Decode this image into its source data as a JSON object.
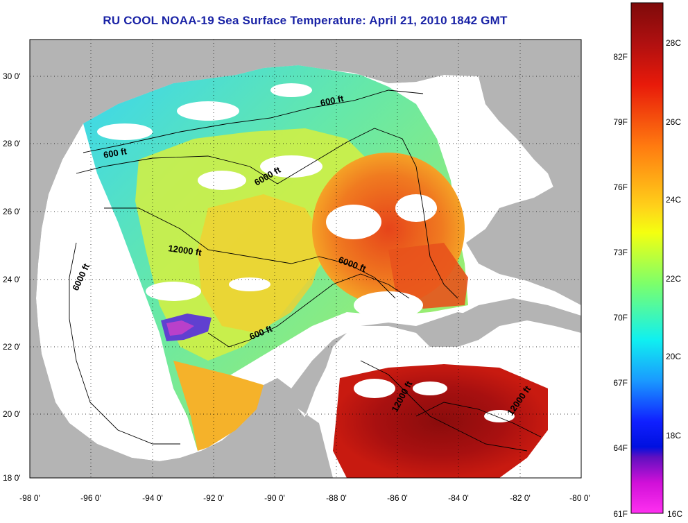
{
  "title": "RU COOL  NOAA-19  Sea Surface Temperature:  April 21, 2010 1842 GMT",
  "lat_ticks": [
    "30 0'",
    "28 0'",
    "26 0'",
    "24 0'",
    "22 0'",
    "20 0'",
    "18 0'"
  ],
  "lon_ticks": [
    "-98 0'",
    "-96 0'",
    "-94 0'",
    "-92 0'",
    "-90 0'",
    "-88 0'",
    "-86 0'",
    "-84 0'",
    "-82 0'",
    "-80 0'"
  ],
  "contour_labels": [
    "600 ft",
    "600 ft",
    "6000 ft",
    "6000 ft",
    "12000 ft",
    "6000 ft",
    "600 ft",
    "12000 ft",
    "12000 ft"
  ],
  "colorbar": {
    "fahrenheit": [
      "82F",
      "79F",
      "76F",
      "73F",
      "70F",
      "67F",
      "64F",
      "61F"
    ],
    "celsius": [
      "28C",
      "26C",
      "24C",
      "22C",
      "20C",
      "18C",
      "16C"
    ]
  },
  "colors": {
    "title": "#1a23a6",
    "land": "#b4b4b4",
    "cloud": "#ffffff"
  }
}
